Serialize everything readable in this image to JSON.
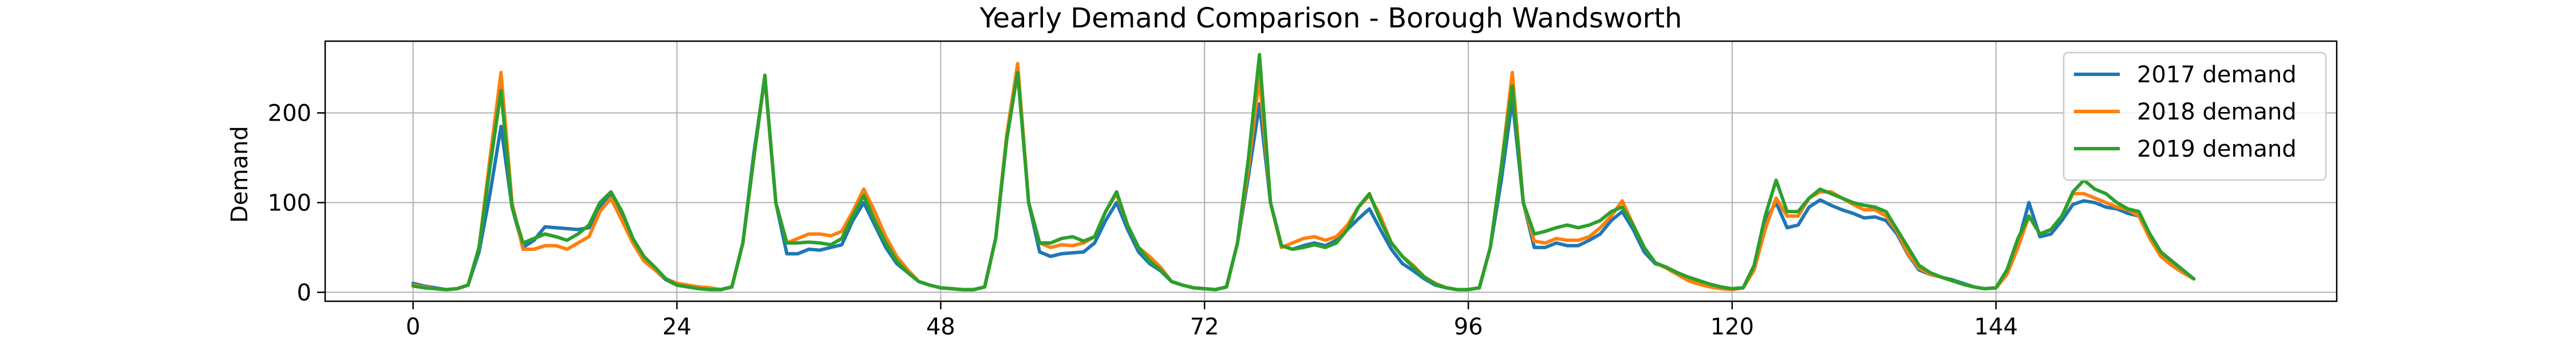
{
  "chart_data": {
    "type": "line",
    "title": "Yearly Demand Comparison - Borough Wandsworth",
    "xlabel": "",
    "ylabel": "Demand",
    "xlim": [
      -8,
      175
    ],
    "ylim": [
      -10,
      280
    ],
    "xticks": [
      0,
      24,
      48,
      72,
      96,
      120,
      144
    ],
    "yticks": [
      0,
      100,
      200
    ],
    "grid": true,
    "legend_position": "top-right",
    "series": [
      {
        "name": "2017 demand",
        "color": "#1f77b4",
        "values": [
          10,
          7,
          5,
          3,
          4,
          8,
          45,
          110,
          185,
          95,
          50,
          58,
          73,
          72,
          71,
          70,
          72,
          95,
          108,
          85,
          55,
          35,
          25,
          14,
          8,
          6,
          5,
          4,
          3,
          6,
          55,
          155,
          240,
          100,
          43,
          43,
          48,
          47,
          50,
          53,
          80,
          100,
          75,
          50,
          32,
          22,
          12,
          8,
          5,
          4,
          3,
          3,
          6,
          60,
          170,
          250,
          100,
          45,
          40,
          43,
          44,
          45,
          55,
          80,
          100,
          70,
          45,
          32,
          24,
          12,
          8,
          5,
          4,
          3,
          6,
          55,
          130,
          210,
          100,
          52,
          48,
          52,
          55,
          52,
          58,
          70,
          82,
          93,
          70,
          48,
          32,
          24,
          15,
          8,
          5,
          3,
          3,
          5,
          50,
          125,
          215,
          100,
          50,
          50,
          55,
          52,
          52,
          58,
          65,
          80,
          90,
          70,
          45,
          32,
          28,
          22,
          15,
          10,
          7,
          5,
          4,
          5,
          25,
          80,
          100,
          72,
          75,
          95,
          103,
          97,
          92,
          88,
          83,
          84,
          80,
          65,
          42,
          25,
          20,
          17,
          14,
          10,
          6,
          4,
          5,
          20,
          55,
          100,
          62,
          65,
          80,
          98,
          102,
          100,
          95,
          93,
          88,
          85,
          65,
          45,
          30,
          22,
          15
        ]
      },
      {
        "name": "2018 demand",
        "color": "#ff7f0e",
        "values": [
          8,
          6,
          4,
          3,
          4,
          8,
          50,
          150,
          245,
          100,
          48,
          48,
          52,
          52,
          48,
          55,
          62,
          90,
          105,
          80,
          55,
          35,
          25,
          15,
          10,
          8,
          6,
          5,
          3,
          6,
          55,
          150,
          240,
          100,
          55,
          60,
          65,
          65,
          63,
          68,
          90,
          115,
          90,
          62,
          40,
          25,
          12,
          8,
          5,
          4,
          3,
          3,
          6,
          60,
          175,
          255,
          100,
          55,
          50,
          53,
          52,
          55,
          62,
          90,
          110,
          75,
          50,
          40,
          28,
          12,
          8,
          5,
          4,
          3,
          6,
          55,
          140,
          240,
          100,
          50,
          55,
          60,
          62,
          58,
          62,
          75,
          95,
          108,
          85,
          55,
          40,
          30,
          17,
          10,
          5,
          3,
          3,
          5,
          50,
          140,
          245,
          100,
          57,
          55,
          60,
          58,
          58,
          62,
          72,
          85,
          102,
          75,
          50,
          33,
          27,
          20,
          13,
          9,
          6,
          4,
          3,
          5,
          25,
          70,
          105,
          85,
          85,
          105,
          112,
          112,
          105,
          98,
          92,
          92,
          85,
          68,
          43,
          27,
          20,
          17,
          13,
          9,
          6,
          4,
          5,
          20,
          50,
          85,
          65,
          70,
          85,
          110,
          110,
          105,
          100,
          95,
          92,
          85,
          60,
          40,
          30,
          22,
          15
        ]
      },
      {
        "name": "2019 demand",
        "color": "#2ca02c",
        "values": [
          7,
          5,
          4,
          3,
          4,
          8,
          50,
          140,
          225,
          95,
          55,
          60,
          65,
          62,
          58,
          65,
          75,
          100,
          112,
          90,
          60,
          40,
          28,
          15,
          8,
          6,
          4,
          3,
          3,
          6,
          55,
          150,
          242,
          100,
          55,
          55,
          56,
          55,
          53,
          60,
          85,
          108,
          80,
          55,
          35,
          22,
          12,
          8,
          5,
          4,
          3,
          3,
          6,
          60,
          170,
          245,
          100,
          55,
          55,
          60,
          62,
          57,
          62,
          90,
          112,
          75,
          50,
          35,
          25,
          12,
          8,
          5,
          4,
          3,
          6,
          55,
          150,
          265,
          100,
          52,
          48,
          50,
          53,
          50,
          55,
          70,
          95,
          110,
          80,
          55,
          40,
          28,
          17,
          9,
          5,
          3,
          3,
          5,
          50,
          140,
          230,
          100,
          65,
          68,
          72,
          75,
          72,
          75,
          80,
          90,
          95,
          75,
          50,
          33,
          28,
          22,
          17,
          13,
          9,
          6,
          4,
          5,
          30,
          85,
          125,
          90,
          90,
          105,
          115,
          110,
          105,
          100,
          97,
          95,
          90,
          70,
          50,
          30,
          22,
          17,
          13,
          9,
          6,
          4,
          5,
          25,
          60,
          85,
          65,
          70,
          85,
          112,
          125,
          115,
          110,
          100,
          93,
          90,
          65,
          45,
          35,
          25,
          15
        ]
      }
    ]
  }
}
